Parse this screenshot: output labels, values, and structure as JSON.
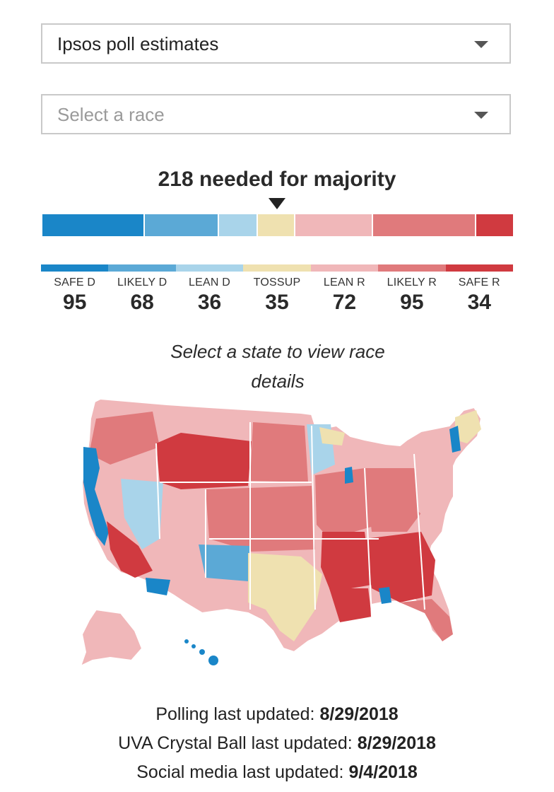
{
  "controls": {
    "source_select": {
      "value": "Ipsos poll estimates"
    },
    "race_select": {
      "placeholder": "Select a race"
    }
  },
  "majority_text": "218 needed for majority",
  "ratings": [
    {
      "label": "SAFE D",
      "count": 95,
      "color": "#1a86c8"
    },
    {
      "label": "LIKELY D",
      "count": 68,
      "color": "#5ba9d6"
    },
    {
      "label": "LEAN D",
      "count": 36,
      "color": "#a9d4ea"
    },
    {
      "label": "TOSSUP",
      "count": 35,
      "color": "#efe1b0"
    },
    {
      "label": "LEAN R",
      "count": 72,
      "color": "#f0b7b9"
    },
    {
      "label": "LIKELY R",
      "count": 95,
      "color": "#e07a7c"
    },
    {
      "label": "SAFE R",
      "count": 34,
      "color": "#d03a40"
    }
  ],
  "map_prompt": "Select a state to view race details",
  "updates": [
    {
      "label": "Polling last updated:",
      "date": "8/29/2018"
    },
    {
      "label": "UVA Crystal Ball last updated:",
      "date": "8/29/2018"
    },
    {
      "label": "Social media last updated:",
      "date": "9/4/2018"
    }
  ]
}
